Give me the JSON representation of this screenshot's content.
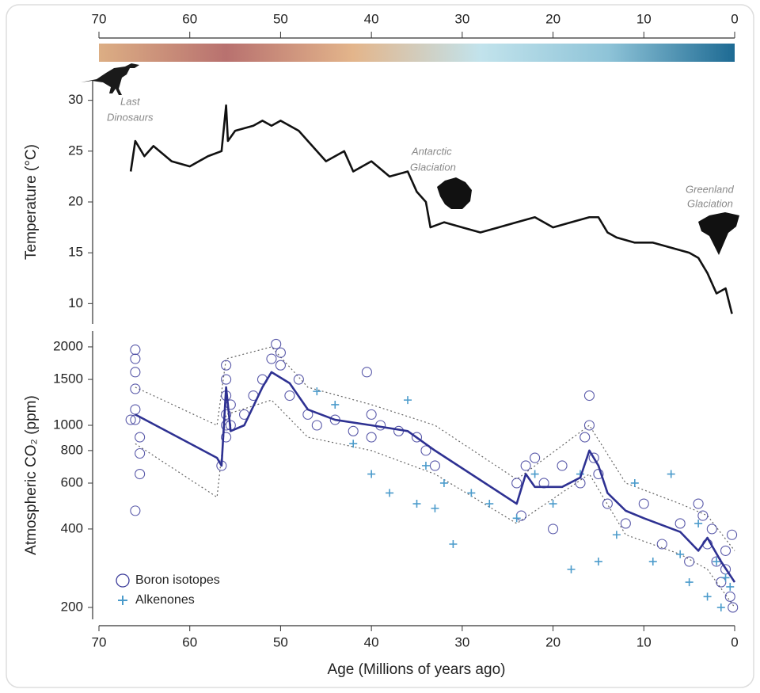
{
  "chart_data": [
    {
      "type": "line",
      "ylabel": "Temperature (°C)",
      "xlim": [
        70,
        0
      ],
      "xticks": [
        70,
        60,
        50,
        40,
        30,
        20,
        10,
        0
      ],
      "ylim": [
        8,
        32
      ],
      "yticks": [
        10,
        15,
        20,
        25,
        30
      ],
      "colorbar": [
        "#dcae84",
        "#b8716f",
        "#e3b58b",
        "#c2e3ec",
        "#8fc4d8",
        "#1d6a93"
      ],
      "annotations": [
        "Last",
        "Dinosaurs",
        "Antarctic",
        "Glaciation",
        "Greenland",
        "Glaciation"
      ],
      "series": [
        {
          "color": "#111111",
          "x": [
            66.5,
            66,
            65,
            64,
            62,
            60,
            58,
            56.5,
            56,
            55.8,
            55,
            53,
            52,
            51,
            50,
            48,
            47,
            45,
            43,
            42,
            40,
            38,
            36,
            35,
            34,
            33.5,
            32,
            30,
            28,
            26,
            24,
            22,
            20,
            18,
            16,
            15,
            14,
            13,
            11,
            9,
            7,
            5,
            4,
            3,
            2,
            1,
            0.3
          ],
          "values": [
            23,
            26,
            24.5,
            25.5,
            24,
            23.5,
            24.5,
            25,
            29.5,
            26,
            27,
            27.5,
            28,
            27.5,
            28,
            27,
            26,
            24,
            25,
            23,
            24,
            22.5,
            23,
            21,
            20,
            17.5,
            18,
            17.5,
            17,
            17.5,
            18,
            18.5,
            17.5,
            18,
            18.5,
            18.5,
            17,
            16.5,
            16,
            16,
            15.5,
            15,
            14.5,
            13,
            11,
            11.5,
            9
          ]
        }
      ]
    },
    {
      "type": "scatter",
      "ylabel": "Atmospheric CO₂ (ppm)",
      "xlabel": "Age (Millions of years ago)",
      "xlim": [
        70,
        0
      ],
      "xticks": [
        70,
        60,
        50,
        40,
        30,
        20,
        10,
        0
      ],
      "ylim": [
        180,
        2300
      ],
      "yticks": [
        200,
        400,
        600,
        800,
        1000,
        1500,
        2000
      ],
      "log_scale": true,
      "legend": "lower left",
      "series": [
        {
          "name": "Boron isotopes",
          "marker": "circle",
          "color": "#3c3c9a",
          "x": [
            66,
            66,
            66,
            66,
            66,
            66,
            65.5,
            65.5,
            65.5,
            66,
            66.5,
            56,
            56,
            56,
            56,
            56,
            56,
            55.5,
            55.5,
            56.5,
            54,
            53,
            52,
            51,
            50.5,
            50,
            50,
            49,
            48,
            47,
            46,
            44,
            42,
            40.5,
            40,
            40,
            39,
            37,
            35,
            34,
            33,
            24,
            23.5,
            23,
            22,
            21,
            20,
            19,
            17,
            16.5,
            16,
            16,
            15.5,
            15,
            14,
            12,
            10,
            8,
            6,
            5,
            4,
            3.5,
            3,
            2.5,
            2,
            1.5,
            1,
            0.5,
            0.2,
            0.3,
            1
          ],
          "values": [
            1950,
            1800,
            1600,
            1380,
            1150,
            1050,
            900,
            780,
            650,
            470,
            1050,
            1700,
            1500,
            1300,
            1100,
            1000,
            900,
            1200,
            1000,
            700,
            1100,
            1300,
            1500,
            1800,
            2050,
            1900,
            1700,
            1300,
            1500,
            1100,
            1000,
            1050,
            950,
            1600,
            1100,
            900,
            1000,
            950,
            900,
            800,
            700,
            600,
            450,
            700,
            750,
            600,
            400,
            700,
            600,
            900,
            1300,
            1000,
            750,
            650,
            500,
            420,
            500,
            350,
            420,
            300,
            500,
            450,
            350,
            400,
            300,
            250,
            280,
            220,
            200,
            380,
            330
          ]
        },
        {
          "name": "Alkenones",
          "marker": "plus",
          "color": "#4b9bcb",
          "x": [
            46,
            44,
            42,
            40,
            38,
            36,
            35,
            34,
            33,
            32,
            31,
            29,
            27,
            24,
            22,
            20,
            18,
            17,
            15,
            13,
            11,
            9,
            7,
            6,
            5,
            4,
            3,
            2,
            1.5,
            1,
            0.5
          ],
          "values": [
            1350,
            1200,
            850,
            650,
            550,
            1250,
            500,
            700,
            480,
            600,
            350,
            550,
            500,
            440,
            650,
            500,
            280,
            650,
            300,
            380,
            600,
            300,
            650,
            320,
            250,
            420,
            220,
            300,
            200,
            260,
            240
          ]
        }
      ],
      "fit": {
        "color": "#2e3192",
        "x": [
          66,
          57,
          56.5,
          56,
          55.5,
          54,
          52,
          51,
          49,
          47,
          44,
          40,
          36,
          33,
          24,
          23,
          22,
          19,
          17,
          16,
          15,
          14,
          12,
          10,
          6,
          4,
          3,
          1.5,
          0
        ],
        "values": [
          1100,
          750,
          700,
          1400,
          950,
          1000,
          1400,
          1600,
          1450,
          1150,
          1050,
          1000,
          950,
          800,
          500,
          650,
          580,
          580,
          630,
          800,
          700,
          550,
          470,
          440,
          390,
          330,
          370,
          300,
          250
        ]
      },
      "band_upper": {
        "x": [
          66,
          57,
          56,
          51,
          47,
          40,
          33,
          24,
          16,
          12,
          6,
          3,
          0
        ],
        "values": [
          1400,
          1000,
          1800,
          2000,
          1400,
          1200,
          1000,
          620,
          1000,
          600,
          500,
          450,
          330
        ]
      },
      "band_lower": {
        "x": [
          66,
          57,
          56,
          51,
          47,
          40,
          33,
          24,
          16,
          12,
          6,
          3,
          0
        ],
        "values": [
          850,
          530,
          1100,
          1250,
          900,
          800,
          650,
          420,
          650,
          380,
          320,
          280,
          200
        ]
      }
    }
  ]
}
